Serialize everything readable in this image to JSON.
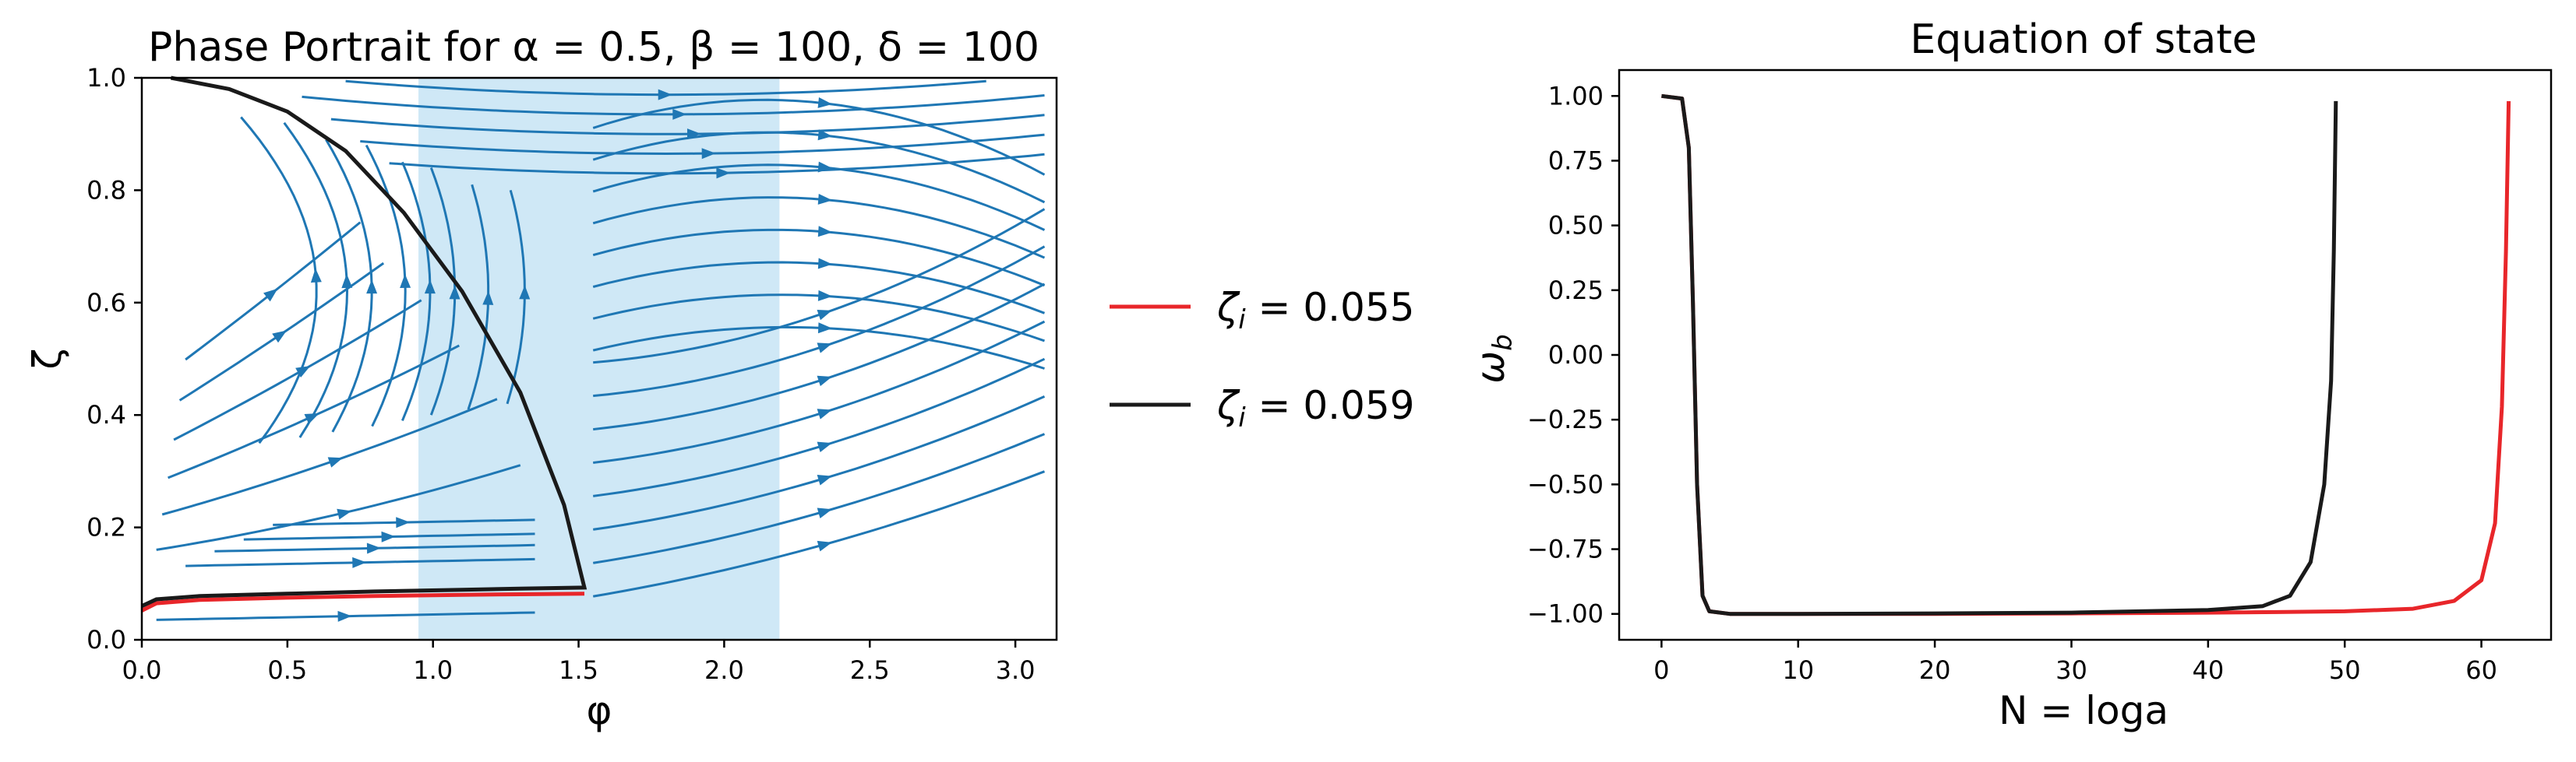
{
  "chart_data": [
    {
      "type": "line",
      "title": "Phase Portrait for α = 0.5, β = 100, δ = 100",
      "xlabel": "φ",
      "ylabel": "ζ",
      "xlim": [
        0.0,
        3.1416
      ],
      "ylim": [
        0.0,
        1.0
      ],
      "xticks": [
        "0.0",
        "0.5",
        "1.0",
        "1.5",
        "2.0",
        "2.5",
        "3.0"
      ],
      "yticks": [
        "0.0",
        "0.2",
        "0.4",
        "0.6",
        "0.8",
        "1.0"
      ],
      "shaded_region": {
        "x": [
          0.95,
          2.19
        ],
        "color": "#cfe8f6"
      },
      "streamline_color": "#1f77b4",
      "grid": false,
      "legend_position": "outside-right",
      "series": [
        {
          "name": "ζ_i = 0.055",
          "label_main": "ζ",
          "label_sub": "i",
          "label_rest": " = 0.055",
          "color": "#e8262a",
          "x": [
            0.0,
            0.05,
            0.2,
            0.5,
            0.8,
            1.1,
            1.3,
            1.52
          ],
          "y": [
            0.052,
            0.065,
            0.071,
            0.075,
            0.078,
            0.08,
            0.081,
            0.082
          ]
        },
        {
          "name": "ζ_i = 0.059",
          "label_main": "ζ",
          "label_sub": "i",
          "label_rest": " = 0.059",
          "color": "#1a1a1a",
          "x": [
            0.0,
            0.05,
            0.2,
            0.5,
            0.8,
            1.1,
            1.3,
            1.52,
            1.45,
            1.3,
            1.1,
            0.9,
            0.7,
            0.5,
            0.3,
            0.1
          ],
          "y": [
            0.06,
            0.072,
            0.078,
            0.082,
            0.086,
            0.089,
            0.091,
            0.093,
            0.24,
            0.44,
            0.62,
            0.76,
            0.87,
            0.94,
            0.98,
            1.0
          ]
        }
      ]
    },
    {
      "type": "line",
      "title": "Equation of state",
      "xlabel": "N = loga",
      "ylabel": "ω_b",
      "ylabel_main": "ω",
      "ylabel_sub": "b",
      "xlim": [
        -3.1,
        65.1
      ],
      "ylim": [
        -1.1,
        1.1
      ],
      "xticks": [
        "0",
        "10",
        "20",
        "30",
        "40",
        "50",
        "60"
      ],
      "yticks": [
        "1.00",
        "0.75",
        "0.50",
        "0.25",
        "0.00",
        "−0.25",
        "−0.50",
        "−0.75",
        "−1.00"
      ],
      "grid": false,
      "series": [
        {
          "name": "ζ_i = 0.055",
          "color": "#e8262a",
          "x": [
            0.0,
            1.5,
            2.0,
            2.3,
            2.6,
            3.0,
            3.5,
            5,
            10,
            20,
            30,
            40,
            45,
            50,
            55,
            58,
            60,
            61,
            61.5,
            61.8,
            62.0
          ],
          "y": [
            1.0,
            0.99,
            0.8,
            0.2,
            -0.5,
            -0.93,
            -0.99,
            -1.0,
            -1.0,
            -1.0,
            -0.998,
            -0.995,
            -0.993,
            -0.99,
            -0.98,
            -0.95,
            -0.87,
            -0.65,
            -0.2,
            0.4,
            0.98
          ]
        },
        {
          "name": "ζ_i = 0.059",
          "color": "#1a1a1a",
          "x": [
            0.0,
            1.5,
            2.0,
            2.3,
            2.6,
            3.0,
            3.5,
            5,
            10,
            20,
            30,
            40,
            44,
            46,
            47.5,
            48.5,
            49.0,
            49.2,
            49.35
          ],
          "y": [
            1.0,
            0.99,
            0.8,
            0.2,
            -0.5,
            -0.93,
            -0.99,
            -1.0,
            -1.0,
            -0.998,
            -0.995,
            -0.985,
            -0.97,
            -0.93,
            -0.8,
            -0.5,
            -0.1,
            0.4,
            0.98
          ]
        }
      ]
    }
  ]
}
